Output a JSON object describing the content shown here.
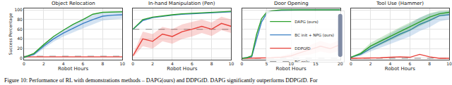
{
  "caption": "Figure 10: Performance of RL with demonstrations methods – DAPG(ours) and DDPGfD. DAPG significantly outperforms DDPGfD. For",
  "chart_data": [
    {
      "type": "line",
      "title": "Object Relocation",
      "x_label": "Robot Hours",
      "y_label": "Success Percentage",
      "xlim": [
        0,
        10
      ],
      "xticks": [
        0,
        2,
        4,
        6,
        8,
        10
      ],
      "ylim": [
        -3,
        103
      ],
      "yticks": [
        0,
        20,
        40,
        60,
        80,
        100
      ],
      "grid": true,
      "x": [
        0,
        1,
        2,
        3,
        4,
        5,
        6,
        7,
        8,
        9,
        10
      ],
      "series": [
        {
          "name": "BC only",
          "color": "#999999",
          "line_style": "dashed",
          "values": [
            4,
            4,
            4,
            4,
            4,
            4,
            4,
            4,
            4,
            4,
            4
          ]
        },
        {
          "name": "DDPGfD",
          "color": "#e8413a",
          "values": [
            3,
            3,
            3,
            3,
            3,
            3,
            3,
            3,
            3,
            3,
            3
          ]
        },
        {
          "name": "BC init + NPG (ours)",
          "color": "#3b7fc4",
          "values": [
            2,
            8,
            25,
            40,
            52,
            62,
            72,
            80,
            87,
            89,
            90
          ],
          "band_low": [
            1,
            5,
            20,
            34,
            45,
            54,
            62,
            70,
            78,
            80,
            82
          ],
          "band_high": [
            3,
            11,
            30,
            46,
            59,
            70,
            82,
            90,
            95,
            97,
            97
          ]
        },
        {
          "name": "DAPG (ours)",
          "color": "#2ca02c",
          "values": [
            2,
            10,
            28,
            45,
            58,
            70,
            80,
            91,
            95,
            96,
            96
          ]
        }
      ]
    },
    {
      "type": "line",
      "title": "In-hand Manipulation (Pen)",
      "x_label": "Robot Hours",
      "tick_labels": "x",
      "xlim": [
        0,
        10
      ],
      "xticks": [
        0,
        2,
        4,
        6,
        8,
        10
      ],
      "ylim": [
        -3,
        103
      ],
      "yticks": [
        0,
        20,
        40,
        60,
        80,
        100
      ],
      "grid": true,
      "x": [
        0,
        1,
        2,
        3,
        4,
        5,
        6,
        7,
        8,
        9,
        10
      ],
      "series": [
        {
          "name": "BC only",
          "color": "#999999",
          "line_style": "dashed",
          "values": [
            60,
            60,
            60,
            60,
            60,
            60,
            60,
            60,
            60,
            60,
            60
          ]
        },
        {
          "name": "DDPGfD",
          "color": "#e8413a",
          "values": [
            5,
            40,
            35,
            50,
            45,
            55,
            60,
            66,
            60,
            72,
            66
          ],
          "band_low": [
            2,
            25,
            20,
            35,
            30,
            40,
            45,
            52,
            46,
            58,
            52
          ],
          "band_high": [
            8,
            55,
            50,
            65,
            60,
            70,
            75,
            80,
            74,
            86,
            80
          ]
        },
        {
          "name": "BC init + NPG (ours)",
          "color": "#3b7fc4",
          "values": [
            60,
            78,
            84,
            87,
            89,
            91,
            92,
            93,
            94,
            95,
            96
          ]
        },
        {
          "name": "DAPG (ours)",
          "color": "#2ca02c",
          "values": [
            60,
            80,
            85,
            88,
            90,
            92,
            93,
            94,
            95,
            96,
            97
          ]
        }
      ]
    },
    {
      "type": "line",
      "title": "Door Opening",
      "x_label": "Robot Hours",
      "tick_labels": "x",
      "legend": "center right",
      "xlim": [
        0,
        20
      ],
      "xticks": [
        0,
        5,
        10,
        15,
        20
      ],
      "ylim": [
        -3,
        103
      ],
      "yticks": [
        0,
        20,
        40,
        60,
        80,
        100
      ],
      "grid": true,
      "x": [
        0,
        1,
        2,
        3,
        4,
        5,
        6,
        8,
        10,
        12,
        14,
        16,
        18,
        20
      ],
      "series": [
        {
          "name": "BC only",
          "color": "#999999",
          "line_style": "dashed",
          "values": [
            0,
            0,
            0,
            0,
            0,
            0,
            0,
            0,
            0,
            0,
            0,
            0,
            0,
            0
          ]
        },
        {
          "name": "DDPGfD",
          "color": "#e8413a",
          "values": [
            0,
            0,
            0,
            0,
            0,
            0,
            1,
            2,
            5,
            12,
            18,
            25,
            20,
            28
          ],
          "band_low": [
            0,
            0,
            0,
            0,
            0,
            0,
            0,
            0,
            1,
            5,
            8,
            14,
            10,
            16
          ],
          "band_high": [
            0,
            0,
            0,
            0,
            0,
            1,
            3,
            5,
            10,
            20,
            28,
            36,
            30,
            38
          ]
        },
        {
          "name": "BC init + NPG (ours)",
          "color": "#3b7fc4",
          "values": [
            0,
            1,
            3,
            40,
            75,
            92,
            97,
            99,
            100,
            100,
            100,
            100,
            100,
            100
          ]
        },
        {
          "name": "DAPG (ours)",
          "color": "#2ca02c",
          "values": [
            0,
            1,
            5,
            50,
            82,
            95,
            98,
            100,
            100,
            100,
            100,
            100,
            100,
            100
          ]
        }
      ]
    },
    {
      "type": "line",
      "title": "Tool Use (Hammer)",
      "x_label": "Robot Hours",
      "tick_labels": "x",
      "xlim": [
        0,
        10
      ],
      "xticks": [
        0,
        2,
        4,
        6,
        8,
        10
      ],
      "ylim": [
        -3,
        103
      ],
      "yticks": [
        0,
        20,
        40,
        60,
        80,
        100
      ],
      "grid": true,
      "x": [
        0,
        1,
        2,
        3,
        4,
        5,
        6,
        7,
        8,
        9,
        10
      ],
      "series": [
        {
          "name": "BC only",
          "color": "#999999",
          "line_style": "dashed",
          "values": [
            0,
            0,
            0,
            0,
            0,
            0,
            0,
            0,
            0,
            0,
            0
          ]
        },
        {
          "name": "DDPGfD",
          "color": "#e8413a",
          "values": [
            0,
            0,
            0,
            1,
            2,
            3,
            2,
            8,
            3,
            0,
            0
          ]
        },
        {
          "name": "BC init + NPG (ours)",
          "color": "#3b7fc4",
          "values": [
            2,
            8,
            20,
            30,
            40,
            50,
            58,
            70,
            78,
            88,
            90
          ],
          "band_low": [
            1,
            5,
            14,
            22,
            30,
            38,
            45,
            56,
            64,
            76,
            80
          ],
          "band_high": [
            3,
            11,
            26,
            38,
            50,
            62,
            71,
            84,
            92,
            97,
            98
          ]
        },
        {
          "name": "DAPG (ours)",
          "color": "#2ca02c",
          "values": [
            2,
            10,
            25,
            35,
            45,
            55,
            65,
            75,
            85,
            92,
            95
          ],
          "band_low": [
            1,
            7,
            18,
            27,
            36,
            46,
            56,
            66,
            77,
            86,
            90
          ],
          "band_high": [
            3,
            13,
            32,
            43,
            54,
            64,
            74,
            84,
            93,
            98,
            99
          ]
        }
      ]
    }
  ]
}
